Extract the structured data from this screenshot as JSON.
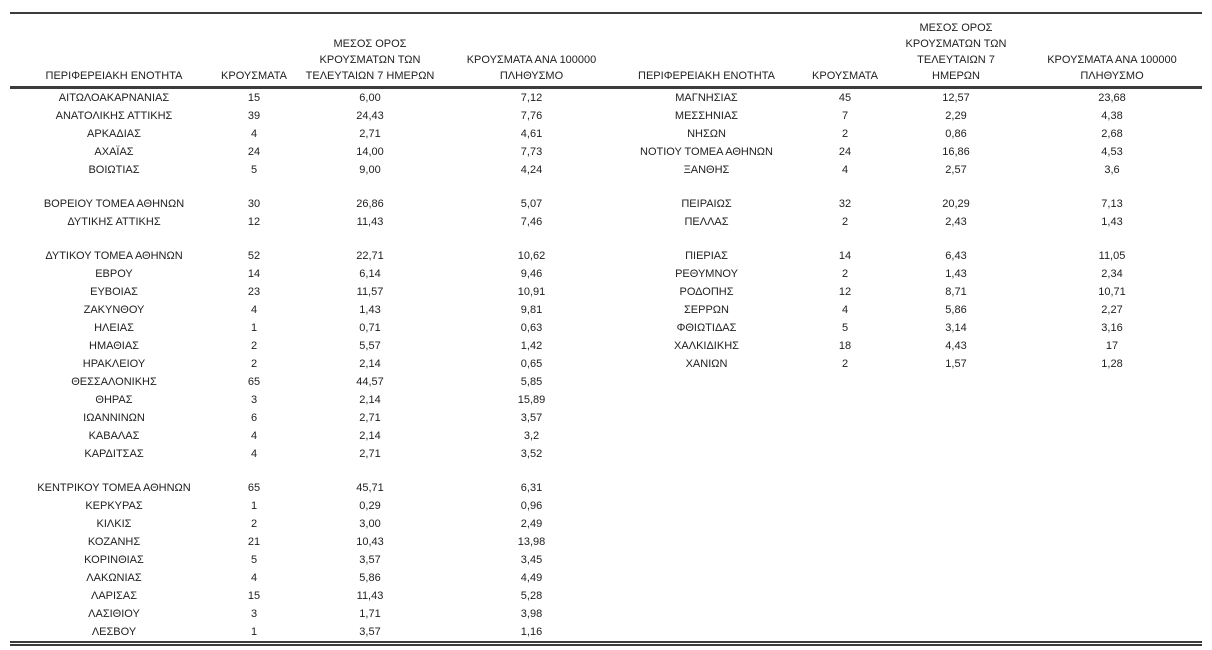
{
  "colors": {
    "background": "#ffffff",
    "text": "#212121",
    "rule": "#3c3c3c"
  },
  "table": {
    "headers": [
      "ΠΕΡΙΦΕΡΕΙΑΚΗ ΕΝΟΤΗΤΑ",
      "ΚΡΟΥΣΜΑΤΑ",
      "ΜΕΣΟΣ ΟΡΟΣ\nΚΡΟΥΣΜΑΤΩΝ ΤΩΝ\nΤΕΛΕΥΤΑΙΩΝ 7 ΗΜΕΡΩΝ",
      "ΚΡΟΥΣΜΑΤΑ ΑΝΑ 100000\nΠΛΗΘΥΣΜΟ"
    ],
    "column_keys": [
      "region",
      "cases",
      "avg-7day",
      "per-100k"
    ],
    "rows": [
      {
        "l": [
          "ΑΙΤΩΛΟΑΚΑΡΝΑΝΙΑΣ",
          "15",
          "6,00",
          "7,12"
        ],
        "r": [
          "ΜΑΓΝΗΣΙΑΣ",
          "45",
          "12,57",
          "23,68"
        ]
      },
      {
        "l": [
          "ΑΝΑΤΟΛΙΚΗΣ ΑΤΤΙΚΗΣ",
          "39",
          "24,43",
          "7,76"
        ],
        "r": [
          "ΜΕΣΣΗΝΙΑΣ",
          "7",
          "2,29",
          "4,38"
        ]
      },
      {
        "l": [
          "ΑΡΚΑΔΙΑΣ",
          "4",
          "2,71",
          "4,61"
        ],
        "r": [
          "ΝΗΣΩΝ",
          "2",
          "0,86",
          "2,68"
        ]
      },
      {
        "l": [
          "ΑΧΑΪΑΣ",
          "24",
          "14,00",
          "7,73"
        ],
        "r": [
          "ΝΟΤΙΟΥ ΤΟΜΕΑ ΑΘΗΝΩΝ",
          "24",
          "16,86",
          "4,53"
        ]
      },
      {
        "l": [
          "ΒΟΙΩΤΙΑΣ",
          "5",
          "9,00",
          "4,24"
        ],
        "r": [
          "ΞΑΝΘΗΣ",
          "4",
          "2,57",
          "3,6"
        ]
      },
      {
        "gap": true
      },
      {
        "l": [
          "ΒΟΡΕΙΟΥ ΤΟΜΕΑ ΑΘΗΝΩΝ",
          "30",
          "26,86",
          "5,07"
        ],
        "r": [
          "ΠΕΙΡΑΙΩΣ",
          "32",
          "20,29",
          "7,13"
        ]
      },
      {
        "l": [
          "ΔΥΤΙΚΗΣ ΑΤΤΙΚΗΣ",
          "12",
          "11,43",
          "7,46"
        ],
        "r": [
          "ΠΕΛΛΑΣ",
          "2",
          "2,43",
          "1,43"
        ]
      },
      {
        "gap": true
      },
      {
        "l": [
          "ΔΥΤΙΚΟΥ ΤΟΜΕΑ ΑΘΗΝΩΝ",
          "52",
          "22,71",
          "10,62"
        ],
        "r": [
          "ΠΙΕΡΙΑΣ",
          "14",
          "6,43",
          "11,05"
        ]
      },
      {
        "l": [
          "ΕΒΡΟΥ",
          "14",
          "6,14",
          "9,46"
        ],
        "r": [
          "ΡΕΘΥΜΝΟΥ",
          "2",
          "1,43",
          "2,34"
        ]
      },
      {
        "l": [
          "ΕΥΒΟΙΑΣ",
          "23",
          "11,57",
          "10,91"
        ],
        "r": [
          "ΡΟΔΟΠΗΣ",
          "12",
          "8,71",
          "10,71"
        ]
      },
      {
        "l": [
          "ΖΑΚΥΝΘΟΥ",
          "4",
          "1,43",
          "9,81"
        ],
        "r": [
          "ΣΕΡΡΩΝ",
          "4",
          "5,86",
          "2,27"
        ]
      },
      {
        "l": [
          "ΗΛΕΙΑΣ",
          "1",
          "0,71",
          "0,63"
        ],
        "r": [
          "ΦΘΙΩΤΙΔΑΣ",
          "5",
          "3,14",
          "3,16"
        ]
      },
      {
        "l": [
          "ΗΜΑΘΙΑΣ",
          "2",
          "5,57",
          "1,42"
        ],
        "r": [
          "ΧΑΛΚΙΔΙΚΗΣ",
          "18",
          "4,43",
          "17"
        ]
      },
      {
        "l": [
          "ΗΡΑΚΛΕΙΟΥ",
          "2",
          "2,14",
          "0,65"
        ],
        "r": [
          "ΧΑΝΙΩΝ",
          "2",
          "1,57",
          "1,28"
        ]
      },
      {
        "l": [
          "ΘΕΣΣΑΛΟΝΙΚΗΣ",
          "65",
          "44,57",
          "5,85"
        ],
        "r": null
      },
      {
        "l": [
          "ΘΗΡΑΣ",
          "3",
          "2,14",
          "15,89"
        ],
        "r": null
      },
      {
        "l": [
          "ΙΩΑΝΝΙΝΩΝ",
          "6",
          "2,71",
          "3,57"
        ],
        "r": null
      },
      {
        "l": [
          "ΚΑΒΑΛΑΣ",
          "4",
          "2,14",
          "3,2"
        ],
        "r": null
      },
      {
        "l": [
          "ΚΑΡΔΙΤΣΑΣ",
          "4",
          "2,71",
          "3,52"
        ],
        "r": null
      },
      {
        "gap": true
      },
      {
        "l": [
          "ΚΕΝΤΡΙΚΟΥ ΤΟΜΕΑ ΑΘΗΝΩΝ",
          "65",
          "45,71",
          "6,31"
        ],
        "r": null
      },
      {
        "l": [
          "ΚΕΡΚΥΡΑΣ",
          "1",
          "0,29",
          "0,96"
        ],
        "r": null
      },
      {
        "l": [
          "ΚΙΛΚΙΣ",
          "2",
          "3,00",
          "2,49"
        ],
        "r": null
      },
      {
        "l": [
          "ΚΟΖΑΝΗΣ",
          "21",
          "10,43",
          "13,98"
        ],
        "r": null
      },
      {
        "l": [
          "ΚΟΡΙΝΘΙΑΣ",
          "5",
          "3,57",
          "3,45"
        ],
        "r": null
      },
      {
        "l": [
          "ΛΑΚΩΝΙΑΣ",
          "4",
          "5,86",
          "4,49"
        ],
        "r": null
      },
      {
        "l": [
          "ΛΑΡΙΣΑΣ",
          "15",
          "11,43",
          "5,28"
        ],
        "r": null
      },
      {
        "l": [
          "ΛΑΣΙΘΙΟΥ",
          "3",
          "1,71",
          "3,98"
        ],
        "r": null
      },
      {
        "l": [
          "ΛΕΣΒΟΥ",
          "1",
          "3,57",
          "1,16"
        ],
        "r": null
      }
    ]
  },
  "chart_data": {
    "type": "table",
    "columns": [
      "ΠΕΡΙΦΕΡΕΙΑΚΗ ΕΝΟΤΗΤΑ",
      "ΚΡΟΥΣΜΑΤΑ",
      "ΜΕΣΟΣ ΟΡΟΣ ΚΡΟΥΣΜΑΤΩΝ ΤΩΝ ΤΕΛΕΥΤΑΙΩΝ 7 ΗΜΕΡΩΝ",
      "ΚΡΟΥΣΜΑΤΑ ΑΝΑ 100000 ΠΛΗΘΥΣΜΟ"
    ],
    "rows": [
      [
        "ΑΙΤΩΛΟΑΚΑΡΝΑΝΙΑΣ",
        15,
        6.0,
        7.12
      ],
      [
        "ΑΝΑΤΟΛΙΚΗΣ ΑΤΤΙΚΗΣ",
        39,
        24.43,
        7.76
      ],
      [
        "ΑΡΚΑΔΙΑΣ",
        4,
        2.71,
        4.61
      ],
      [
        "ΑΧΑΪΑΣ",
        24,
        14.0,
        7.73
      ],
      [
        "ΒΟΙΩΤΙΑΣ",
        5,
        9.0,
        4.24
      ],
      [
        "ΒΟΡΕΙΟΥ ΤΟΜΕΑ ΑΘΗΝΩΝ",
        30,
        26.86,
        5.07
      ],
      [
        "ΔΥΤΙΚΗΣ ΑΤΤΙΚΗΣ",
        12,
        11.43,
        7.46
      ],
      [
        "ΔΥΤΙΚΟΥ ΤΟΜΕΑ ΑΘΗΝΩΝ",
        52,
        22.71,
        10.62
      ],
      [
        "ΕΒΡΟΥ",
        14,
        6.14,
        9.46
      ],
      [
        "ΕΥΒΟΙΑΣ",
        23,
        11.57,
        10.91
      ],
      [
        "ΖΑΚΥΝΘΟΥ",
        4,
        1.43,
        9.81
      ],
      [
        "ΗΛΕΙΑΣ",
        1,
        0.71,
        0.63
      ],
      [
        "ΗΜΑΘΙΑΣ",
        2,
        5.57,
        1.42
      ],
      [
        "ΗΡΑΚΛΕΙΟΥ",
        2,
        2.14,
        0.65
      ],
      [
        "ΘΕΣΣΑΛΟΝΙΚΗΣ",
        65,
        44.57,
        5.85
      ],
      [
        "ΘΗΡΑΣ",
        3,
        2.14,
        15.89
      ],
      [
        "ΙΩΑΝΝΙΝΩΝ",
        6,
        2.71,
        3.57
      ],
      [
        "ΚΑΒΑΛΑΣ",
        4,
        2.14,
        3.2
      ],
      [
        "ΚΑΡΔΙΤΣΑΣ",
        4,
        2.71,
        3.52
      ],
      [
        "ΚΕΝΤΡΙΚΟΥ ΤΟΜΕΑ ΑΘΗΝΩΝ",
        65,
        45.71,
        6.31
      ],
      [
        "ΚΕΡΚΥΡΑΣ",
        1,
        0.29,
        0.96
      ],
      [
        "ΚΙΛΚΙΣ",
        2,
        3.0,
        2.49
      ],
      [
        "ΚΟΖΑΝΗΣ",
        21,
        10.43,
        13.98
      ],
      [
        "ΚΟΡΙΝΘΙΑΣ",
        5,
        3.57,
        3.45
      ],
      [
        "ΛΑΚΩΝΙΑΣ",
        4,
        5.86,
        4.49
      ],
      [
        "ΛΑΡΙΣΑΣ",
        15,
        11.43,
        5.28
      ],
      [
        "ΛΑΣΙΘΙΟΥ",
        3,
        1.71,
        3.98
      ],
      [
        "ΛΕΣΒΟΥ",
        1,
        3.57,
        1.16
      ],
      [
        "ΜΑΓΝΗΣΙΑΣ",
        45,
        12.57,
        23.68
      ],
      [
        "ΜΕΣΣΗΝΙΑΣ",
        7,
        2.29,
        4.38
      ],
      [
        "ΝΗΣΩΝ",
        2,
        0.86,
        2.68
      ],
      [
        "ΝΟΤΙΟΥ ΤΟΜΕΑ ΑΘΗΝΩΝ",
        24,
        16.86,
        4.53
      ],
      [
        "ΞΑΝΘΗΣ",
        4,
        2.57,
        3.6
      ],
      [
        "ΠΕΙΡΑΙΩΣ",
        32,
        20.29,
        7.13
      ],
      [
        "ΠΕΛΛΑΣ",
        2,
        2.43,
        1.43
      ],
      [
        "ΠΙΕΡΙΑΣ",
        14,
        6.43,
        11.05
      ],
      [
        "ΡΕΘΥΜΝΟΥ",
        2,
        1.43,
        2.34
      ],
      [
        "ΡΟΔΟΠΗΣ",
        12,
        8.71,
        10.71
      ],
      [
        "ΣΕΡΡΩΝ",
        4,
        5.86,
        2.27
      ],
      [
        "ΦΘΙΩΤΙΔΑΣ",
        5,
        3.14,
        3.16
      ],
      [
        "ΧΑΛΚΙΔΙΚΗΣ",
        18,
        4.43,
        17
      ],
      [
        "ΧΑΝΙΩΝ",
        2,
        1.57,
        1.28
      ]
    ]
  }
}
